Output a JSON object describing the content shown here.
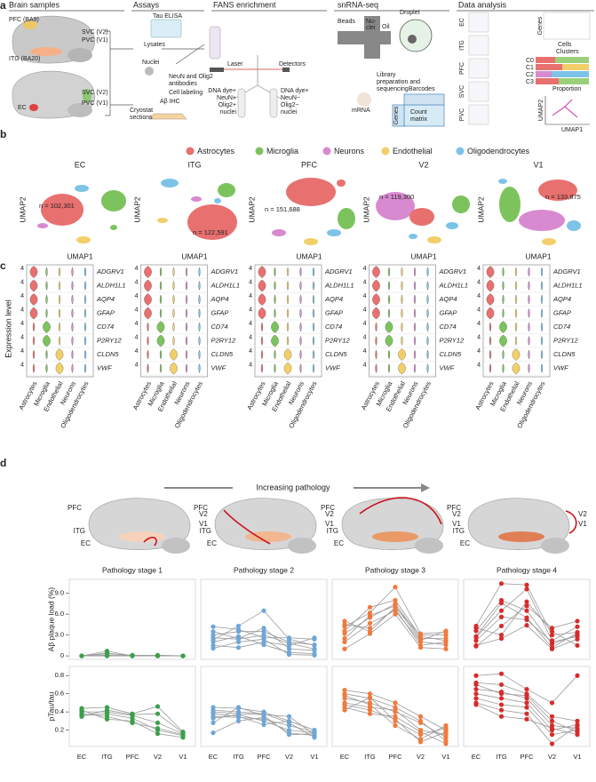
{
  "panel_a": {
    "label": "a",
    "headers": [
      "Brain samples",
      "Assays",
      "FANS enrichment",
      "snRNA-seq",
      "Data analysis"
    ],
    "labels": [
      "PFC (BA9)",
      "SVC (V2)",
      "PVC (V1)",
      "ITG (BA20)",
      "SVC (V2)",
      "PVC (V1)",
      "EC",
      "Lysates",
      "Tau ELISA",
      "Nuclei",
      "NeuN and Olig2",
      "antibodies",
      "Cell labeling",
      "Cryostat",
      "sections",
      "Aβ IHC",
      "Laser",
      "Detectors",
      "DNA dye+",
      "NeuN+",
      "Olig2+",
      "nuclei",
      "DNA dye+",
      "NeuN−",
      "Olig2−",
      "nuclei",
      "Beads",
      "Nu-",
      "clei",
      "Oil",
      "Droplet",
      "mRNA",
      "Library",
      "preparation and",
      "sequencing",
      "Barcodes",
      "Genes",
      "Count",
      "matrix",
      "EC",
      "ITG",
      "PFC",
      "SVC",
      "PVC",
      "Genes",
      "Cells",
      "Clusters",
      "C0",
      "C1",
      "C2",
      "C3",
      "Proportion",
      "UMAP2",
      "UMAP1"
    ]
  },
  "panel_b": {
    "label": "b",
    "legend": [
      {
        "name": "Astrocytes",
        "color": "#e8706f"
      },
      {
        "name": "Microglia",
        "color": "#7cc35d"
      },
      {
        "name": "Neurons",
        "color": "#d88ad0"
      },
      {
        "name": "Endothelial",
        "color": "#f2cf68"
      },
      {
        "name": "Oligodendrocytes",
        "color": "#7dc3e8"
      }
    ],
    "umaps": [
      {
        "title": "EC",
        "n": "n = 102,301"
      },
      {
        "title": "ITG",
        "n": "n = 122,591"
      },
      {
        "title": "PFC",
        "n": "n = 151,688"
      },
      {
        "title": "V2",
        "n": "n = 119,300"
      },
      {
        "title": "V1",
        "n": "n = 133,875"
      }
    ],
    "x_label": "UMAP1",
    "y_label": "UMAP2"
  },
  "panel_c": {
    "label": "c",
    "y_label": "Expression level",
    "ytick": "4",
    "genes": [
      "ADGRV1",
      "ALDH1L1",
      "AQP4",
      "GFAP",
      "CD74",
      "P2RY12",
      "CLDN5",
      "VWF"
    ]
  },
  "panel_d": {
    "label": "d",
    "arrow_label": "Increasing pathology",
    "brain_labels": [
      "PFC",
      "V2",
      "V1",
      "ITG",
      "EC"
    ],
    "regions": [
      "EC",
      "ITG",
      "PFC",
      "V2",
      "V1"
    ],
    "abeta_axis": {
      "label": "Aβ plaque load (%)",
      "ylim": [
        -0.5,
        11
      ],
      "yticks": [
        0,
        {
          "value": 3,
          "label": "3.0"
        },
        {
          "value": 6,
          "label": "6.0"
        },
        {
          "value": 9,
          "label": "9.0"
        }
      ]
    },
    "ptau_axis": {
      "label": "pTau/tau",
      "ylim": [
        0.02,
        0.9
      ],
      "yticks": [
        0.2,
        0.4,
        0.6,
        0.8
      ]
    },
    "stages": [
      {
        "title": "Pathology stage 1",
        "color": "#3aa04a",
        "abeta": [
          [
            0,
            0.7,
            0,
            0,
            0
          ],
          [
            0,
            0.3,
            0.1,
            0,
            0
          ],
          [
            0,
            0,
            0,
            0.1,
            0
          ],
          [
            0,
            0.1,
            0,
            0,
            0
          ],
          [
            0,
            0,
            0.1,
            0,
            0
          ],
          [
            0,
            0.4,
            0,
            0,
            0
          ]
        ],
        "ptau": [
          [
            0.44,
            0.45,
            0.38,
            0.46,
            0.18
          ],
          [
            0.4,
            0.4,
            0.36,
            0.28,
            0.16
          ],
          [
            0.36,
            0.38,
            0.33,
            0.2,
            0.14
          ],
          [
            0.42,
            0.32,
            0.3,
            0.16,
            0.12
          ],
          [
            0.38,
            0.35,
            0.28,
            0.22,
            0.15
          ],
          [
            0.35,
            0.42,
            0.37,
            0.38,
            0.17
          ]
        ]
      },
      {
        "title": "Pathology stage 2",
        "color": "#6ea6d7",
        "abeta": [
          [
            2.3,
            4.3,
            6.5,
            2.4,
            1.5
          ],
          [
            4.2,
            3.8,
            2.6,
            2.6,
            2.4
          ],
          [
            3.5,
            2.5,
            4,
            1,
            0.8
          ],
          [
            2.6,
            2.4,
            3,
            1.8,
            1
          ],
          [
            2,
            2.8,
            1.6,
            0.5,
            0.3
          ],
          [
            1.5,
            1.2,
            2,
            1.5,
            2.6
          ],
          [
            1.1,
            2,
            2.4,
            0.2,
            0.1
          ],
          [
            3,
            3.5,
            3.5,
            2,
            1.6
          ]
        ],
        "ptau": [
          [
            0.45,
            0.44,
            0.4,
            0.3,
            0.2
          ],
          [
            0.4,
            0.38,
            0.37,
            0.35,
            0.15
          ],
          [
            0.35,
            0.34,
            0.32,
            0.25,
            0.18
          ],
          [
            0.33,
            0.37,
            0.3,
            0.2,
            0.17
          ],
          [
            0.28,
            0.45,
            0.36,
            0.15,
            0.16
          ],
          [
            0.17,
            0.3,
            0.34,
            0.17,
            0.14
          ],
          [
            0.38,
            0.35,
            0.26,
            0.3,
            0.2
          ],
          [
            0.42,
            0.4,
            0.38,
            0.28,
            0.12
          ]
        ]
      },
      {
        "title": "Pathology stage 3",
        "color": "#f07a3c",
        "abeta": [
          [
            4.2,
            6.2,
            9.9,
            3.2,
            3.4
          ],
          [
            3.2,
            5.5,
            7.5,
            2.5,
            2.5
          ],
          [
            2,
            4.7,
            6.5,
            2,
            1.6
          ],
          [
            5,
            3.5,
            7,
            3,
            3
          ],
          [
            1,
            3.2,
            6,
            1.2,
            1
          ],
          [
            3.6,
            7,
            8,
            2.8,
            2.2
          ],
          [
            2.5,
            5.8,
            7.2,
            2.2,
            3.6
          ],
          [
            4.5,
            4,
            6.8,
            1.5,
            2
          ]
        ],
        "ptau": [
          [
            0.64,
            0.6,
            0.5,
            0.35,
            0.2
          ],
          [
            0.6,
            0.55,
            0.45,
            0.3,
            0.08
          ],
          [
            0.55,
            0.5,
            0.4,
            0.28,
            0.12
          ],
          [
            0.5,
            0.45,
            0.42,
            0.2,
            0.15
          ],
          [
            0.45,
            0.38,
            0.35,
            0.18,
            0.05
          ],
          [
            0.42,
            0.56,
            0.3,
            0.15,
            0.22
          ],
          [
            0.58,
            0.48,
            0.25,
            0.1,
            0.25
          ],
          [
            0.48,
            0.42,
            0.32,
            0.07,
            0.18
          ]
        ]
      },
      {
        "title": "Pathology stage 4",
        "color": "#d92b2b",
        "abeta": [
          [
            4.3,
            10.4,
            10.2,
            3,
            3.4
          ],
          [
            2.7,
            6.5,
            9.6,
            2.2,
            4.2
          ],
          [
            3.6,
            8,
            6.5,
            1.7,
            3
          ],
          [
            1.4,
            4.3,
            7.2,
            4,
            5
          ],
          [
            2.2,
            5.6,
            5.2,
            2,
            2.8
          ],
          [
            4,
            3,
            7.8,
            3.5,
            1.5
          ],
          [
            1.5,
            2.5,
            4.4,
            1,
            2.4
          ],
          [
            2.8,
            7.6,
            5.5,
            1.2,
            3.3
          ]
        ],
        "ptau": [
          [
            0.8,
            0.82,
            0.65,
            0.5,
            0.8
          ],
          [
            0.72,
            0.7,
            0.6,
            0.35,
            0.3
          ],
          [
            0.65,
            0.62,
            0.55,
            0.25,
            0.22
          ],
          [
            0.6,
            0.55,
            0.5,
            0.2,
            0.26
          ],
          [
            0.55,
            0.48,
            0.45,
            0.15,
            0.2
          ],
          [
            0.5,
            0.42,
            0.38,
            0.05,
            0.25
          ],
          [
            0.48,
            0.35,
            0.32,
            0.22,
            0.15
          ],
          [
            0.7,
            0.6,
            0.58,
            0.3,
            0.18
          ]
        ]
      }
    ]
  }
}
